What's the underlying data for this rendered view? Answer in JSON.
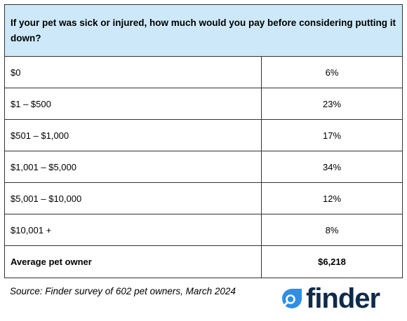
{
  "header": {
    "title": "If your pet was sick or injured, how much would you pay before considering putting it down?"
  },
  "table": {
    "rows": [
      [
        "$0",
        "6%"
      ],
      [
        "$1 – $500",
        "23%"
      ],
      [
        "$501 – $1,000",
        "17%"
      ],
      [
        "$1,001 – $5,000",
        "34%"
      ],
      [
        "$5,001 – $10,000",
        "12%"
      ],
      [
        "$10,001 +",
        "8%"
      ]
    ],
    "total": [
      "Average pet owner",
      "$6,218"
    ]
  },
  "source": "Source: Finder survey of 602 pet owners, March 2024",
  "logo": {
    "text": "finder"
  }
}
